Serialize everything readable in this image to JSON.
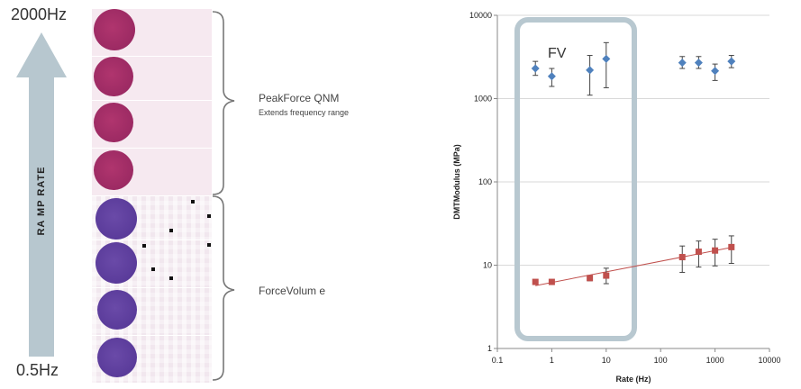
{
  "left_figure": {
    "top_label_value": "2000",
    "top_label_unit": "Hz",
    "bottom_label_value": "0.5",
    "bottom_label_unit": "Hz",
    "arrow_label": "RA MP RATE",
    "brace_top_title": "PeakForce QNM",
    "brace_top_subtitle": "Extends frequency range",
    "brace_bottom_title": "ForceVolum e",
    "arrow_color": "#b7c7cf",
    "peakforce_dot_color": "#9c2a63",
    "forcevolume_dot_color": "#5a3b9a"
  },
  "chart_data": {
    "type": "scatter",
    "title": "",
    "xlabel": "Rate (Hz)",
    "ylabel": "DMTModulus (MPa)",
    "xscale": "log",
    "yscale": "log",
    "xlim": [
      0.1,
      10000
    ],
    "ylim": [
      1,
      10000
    ],
    "x_ticks": [
      "0.1",
      "1",
      "10",
      "100",
      "1000",
      "10000"
    ],
    "y_ticks": [
      "1",
      "10",
      "100",
      "1000",
      "10000"
    ],
    "grid": "horizontal major",
    "annotation": "FV",
    "annotation_box_color": "#b8c8d0",
    "series": [
      {
        "color": "#4f81bd",
        "marker": "diamond",
        "points": [
          {
            "x": 0.5,
            "y": 2300,
            "err_lo": 1900,
            "err_hi": 2800
          },
          {
            "x": 1,
            "y": 1850,
            "err_lo": 1400,
            "err_hi": 2300
          },
          {
            "x": 5,
            "y": 2200,
            "err_lo": 1100,
            "err_hi": 3300
          },
          {
            "x": 10,
            "y": 3000,
            "err_lo": 1350,
            "err_hi": 4700
          },
          {
            "x": 250,
            "y": 2700,
            "err_lo": 2300,
            "err_hi": 3200
          },
          {
            "x": 500,
            "y": 2700,
            "err_lo": 2300,
            "err_hi": 3200
          },
          {
            "x": 1000,
            "y": 2150,
            "err_lo": 1650,
            "err_hi": 2600
          },
          {
            "x": 2000,
            "y": 2800,
            "err_lo": 2350,
            "err_hi": 3300
          }
        ]
      },
      {
        "color": "#c0504d",
        "marker": "square",
        "trendline": true,
        "points": [
          {
            "x": 0.5,
            "y": 6.3,
            "err_lo": 5.9,
            "err_hi": 6.7
          },
          {
            "x": 1,
            "y": 6.3,
            "err_lo": 5.9,
            "err_hi": 6.7
          },
          {
            "x": 5,
            "y": 7.0,
            "err_lo": 6.5,
            "err_hi": 7.4
          },
          {
            "x": 10,
            "y": 7.5,
            "err_lo": 6.0,
            "err_hi": 9.2
          },
          {
            "x": 250,
            "y": 12.5,
            "err_lo": 8.2,
            "err_hi": 17.0
          },
          {
            "x": 500,
            "y": 14.5,
            "err_lo": 9.5,
            "err_hi": 19.5
          },
          {
            "x": 1000,
            "y": 15.0,
            "err_lo": 9.8,
            "err_hi": 20.5
          },
          {
            "x": 2000,
            "y": 16.5,
            "err_lo": 10.5,
            "err_hi": 22.5
          }
        ]
      }
    ]
  }
}
